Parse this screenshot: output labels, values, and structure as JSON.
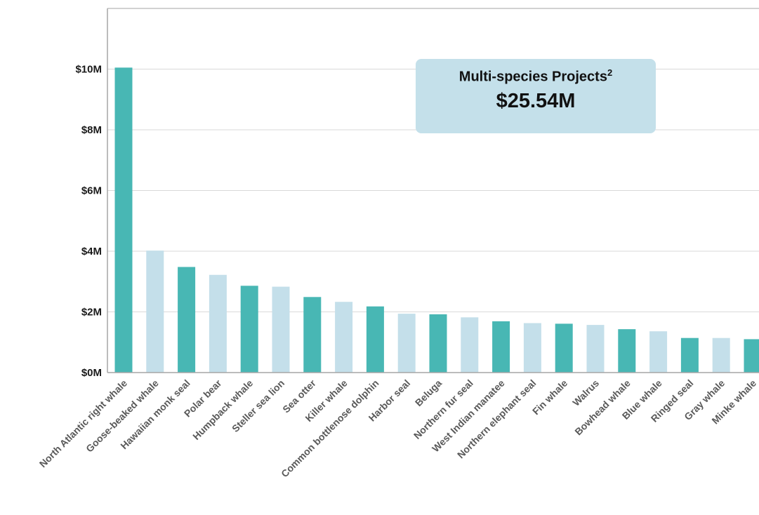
{
  "colors": {
    "dark_bar": "#48b7b4",
    "light_bar": "#c4dfea",
    "grid": "#d9d9d9",
    "axis": "#a6a6a6",
    "callout_bg": "#c4e0ea"
  },
  "callout": {
    "title": "Multi-species Projects",
    "superscript": "2",
    "value": "$25.54M"
  },
  "chart_data": {
    "type": "bar",
    "title": "",
    "xlabel": "",
    "ylabel": "",
    "ylim": [
      0,
      12
    ],
    "grid": true,
    "yticks": [
      {
        "value": 0,
        "label": "$0M"
      },
      {
        "value": 2,
        "label": "$2M"
      },
      {
        "value": 4,
        "label": "$4M"
      },
      {
        "value": 6,
        "label": "$6M"
      },
      {
        "value": 8,
        "label": "$8M"
      },
      {
        "value": 10,
        "label": "$10M"
      }
    ],
    "categories": [
      "North Atlantic right whale",
      "Goose-beaked whale",
      "Hawaiian monk seal",
      "Polar bear",
      "Humpback whale",
      "Steller sea lion",
      "Sea otter",
      "Killer whale",
      "Common bottlenose dolphin",
      "Harbor seal",
      "Beluga",
      "Northern fur seal",
      "West Indian manatee",
      "Northern elephant seal",
      "Fin whale",
      "Walrus",
      "Bowhead whale",
      "Blue whale",
      "Ringed seal",
      "Gray whale",
      "Minke whale"
    ],
    "values": [
      10.05,
      4.02,
      3.48,
      3.22,
      2.86,
      2.83,
      2.49,
      2.33,
      2.18,
      1.94,
      1.92,
      1.82,
      1.69,
      1.63,
      1.61,
      1.57,
      1.43,
      1.36,
      1.14,
      1.14,
      1.1
    ],
    "bar_colors": [
      "dark",
      "light",
      "dark",
      "light",
      "dark",
      "light",
      "dark",
      "light",
      "dark",
      "light",
      "dark",
      "light",
      "dark",
      "light",
      "dark",
      "light",
      "dark",
      "light",
      "dark",
      "light",
      "dark"
    ]
  }
}
